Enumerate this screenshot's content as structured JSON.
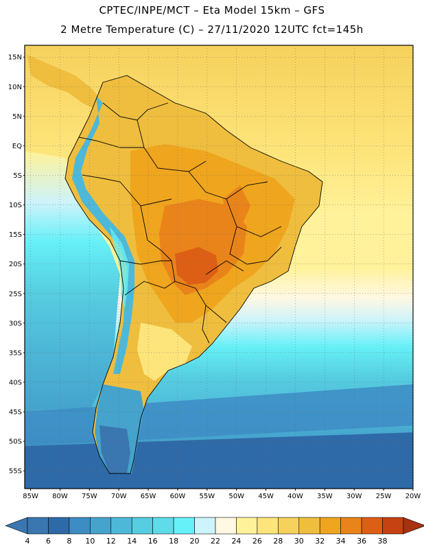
{
  "header": {
    "line1": "CPTEC/INPE/MCT –  Eta Model 15km – GFS",
    "line2": "2 Metre Temperature (C) – 27/11/2020 12UTC fct=145h"
  },
  "axes": {
    "lat_labels": [
      "15N",
      "10N",
      "5N",
      "EQ",
      "5S",
      "10S",
      "15S",
      "20S",
      "25S",
      "30S",
      "35S",
      "40S",
      "45S",
      "50S",
      "55S"
    ],
    "lat_values": [
      15,
      10,
      5,
      0,
      -5,
      -10,
      -15,
      -20,
      -25,
      -30,
      -35,
      -40,
      -45,
      -50,
      -55
    ],
    "lon_labels": [
      "85W",
      "80W",
      "75W",
      "70W",
      "65W",
      "60W",
      "55W",
      "50W",
      "45W",
      "40W",
      "35W",
      "30W",
      "25W",
      "20W"
    ],
    "lon_values": [
      -85,
      -80,
      -75,
      -70,
      -65,
      -60,
      -55,
      -50,
      -45,
      -40,
      -35,
      -30,
      -25,
      -20
    ],
    "lat_range": [
      -58,
      17
    ],
    "lon_range": [
      -86,
      -20
    ]
  },
  "colorbar": {
    "labels": [
      "4",
      "6",
      "8",
      "10",
      "12",
      "14",
      "16",
      "18",
      "20",
      "22",
      "24",
      "26",
      "28",
      "30",
      "32",
      "34",
      "36",
      "38"
    ],
    "colors": [
      "#3a76b0",
      "#2f6aa8",
      "#3d8cc4",
      "#45a3cc",
      "#4eb8d8",
      "#56cde0",
      "#5edcea",
      "#66f0f7",
      "#cdf3fb",
      "#fff8e3",
      "#fff29a",
      "#fde57c",
      "#f6d15c",
      "#efbe3e",
      "#efa51e",
      "#e9841a",
      "#dd5f15",
      "#c64212",
      "#a7320f"
    ],
    "under_color": "#3a76b0",
    "over_color": "#a7320f"
  },
  "palette": {
    "ocean_north": "#f6d15c",
    "ocean_central": "#fff29a",
    "ocean_mid": "#cdf3fb",
    "ocean_south_warm": "#56cde0",
    "ocean_south": "#45a3cc",
    "ocean_far_south": "#2f6aa8",
    "land_hot": "#dd5f15",
    "land_warm": "#efbe3e",
    "andes": "#4eb8d8",
    "patagonia": "#45a3cc",
    "border": "#000000"
  }
}
